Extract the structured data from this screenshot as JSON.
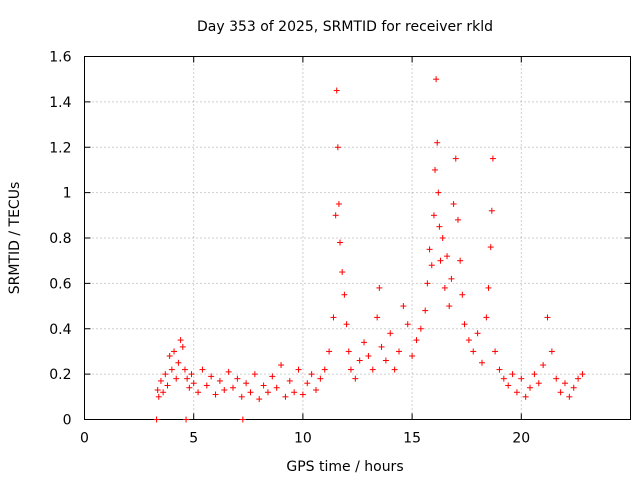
{
  "chart_data": {
    "type": "scatter",
    "title": "Day 353 of 2025, SRMTID for receiver rkld",
    "xlabel": "GPS time / hours",
    "ylabel": "SRMTID / TECUs",
    "xlim": [
      0,
      25
    ],
    "ylim": [
      0,
      1.6
    ],
    "xticks": [
      0,
      5,
      10,
      15,
      20
    ],
    "xtick_labels": [
      "0",
      "5",
      "10",
      "15",
      "20"
    ],
    "yticks": [
      0,
      0.2,
      0.4,
      0.6,
      0.8,
      1,
      1.2,
      1.4,
      1.6
    ],
    "ytick_labels": [
      "0",
      "0.2",
      "0.4",
      "0.6",
      "0.8",
      "1",
      "1.2",
      "1.4",
      "1.6"
    ],
    "grid": true,
    "marker": "+",
    "color": "#ff0000",
    "series": [
      {
        "name": "SRMTID",
        "x": [
          3.3,
          3.35,
          3.4,
          3.5,
          3.6,
          3.7,
          3.8,
          3.9,
          4.0,
          4.1,
          4.2,
          4.3,
          4.4,
          4.5,
          4.6,
          4.65,
          4.7,
          4.8,
          4.9,
          5.0,
          5.2,
          5.4,
          5.6,
          5.8,
          6.0,
          6.2,
          6.4,
          6.6,
          6.8,
          7.0,
          7.2,
          7.25,
          7.4,
          7.6,
          7.8,
          8.0,
          8.2,
          8.4,
          8.6,
          8.8,
          9.0,
          9.2,
          9.4,
          9.6,
          9.8,
          10.0,
          10.2,
          10.4,
          10.6,
          10.8,
          11.0,
          11.2,
          11.4,
          11.5,
          11.55,
          11.6,
          11.65,
          11.7,
          11.8,
          11.9,
          12.0,
          12.1,
          12.2,
          12.4,
          12.6,
          12.8,
          13.0,
          13.2,
          13.4,
          13.5,
          13.6,
          13.8,
          14.0,
          14.2,
          14.4,
          14.6,
          14.8,
          15.0,
          15.2,
          15.4,
          15.6,
          15.7,
          15.8,
          15.9,
          16.0,
          16.05,
          16.1,
          16.15,
          16.2,
          16.25,
          16.3,
          16.4,
          16.5,
          16.6,
          16.7,
          16.8,
          16.9,
          17.0,
          17.1,
          17.2,
          17.3,
          17.4,
          17.6,
          17.8,
          18.0,
          18.2,
          18.4,
          18.5,
          18.6,
          18.65,
          18.7,
          18.8,
          19.0,
          19.2,
          19.4,
          19.6,
          19.8,
          20.0,
          20.2,
          20.4,
          20.6,
          20.8,
          21.0,
          21.2,
          21.4,
          21.6,
          21.8,
          22.0,
          22.2,
          22.4,
          22.6,
          22.8
        ],
        "y": [
          0.0,
          0.13,
          0.1,
          0.17,
          0.12,
          0.2,
          0.15,
          0.28,
          0.22,
          0.3,
          0.18,
          0.25,
          0.35,
          0.32,
          0.22,
          0.0,
          0.18,
          0.14,
          0.2,
          0.16,
          0.12,
          0.22,
          0.15,
          0.19,
          0.11,
          0.17,
          0.13,
          0.21,
          0.14,
          0.18,
          0.1,
          0.0,
          0.16,
          0.12,
          0.2,
          0.09,
          0.15,
          0.12,
          0.19,
          0.14,
          0.24,
          0.1,
          0.17,
          0.12,
          0.22,
          0.11,
          0.16,
          0.2,
          0.13,
          0.18,
          0.22,
          0.3,
          0.45,
          0.9,
          1.45,
          1.2,
          0.95,
          0.78,
          0.65,
          0.55,
          0.42,
          0.3,
          0.22,
          0.18,
          0.26,
          0.34,
          0.28,
          0.22,
          0.45,
          0.58,
          0.32,
          0.26,
          0.38,
          0.22,
          0.3,
          0.5,
          0.42,
          0.28,
          0.35,
          0.4,
          0.48,
          0.6,
          0.75,
          0.68,
          0.9,
          1.1,
          1.5,
          1.22,
          1.0,
          0.85,
          0.7,
          0.8,
          0.58,
          0.72,
          0.5,
          0.62,
          0.95,
          1.15,
          0.88,
          0.7,
          0.55,
          0.42,
          0.35,
          0.3,
          0.38,
          0.25,
          0.45,
          0.58,
          0.76,
          0.92,
          1.15,
          0.3,
          0.22,
          0.18,
          0.15,
          0.2,
          0.12,
          0.18,
          0.1,
          0.14,
          0.2,
          0.16,
          0.24,
          0.45,
          0.3,
          0.18,
          0.12,
          0.16,
          0.1,
          0.14,
          0.18,
          0.2
        ]
      }
    ]
  }
}
